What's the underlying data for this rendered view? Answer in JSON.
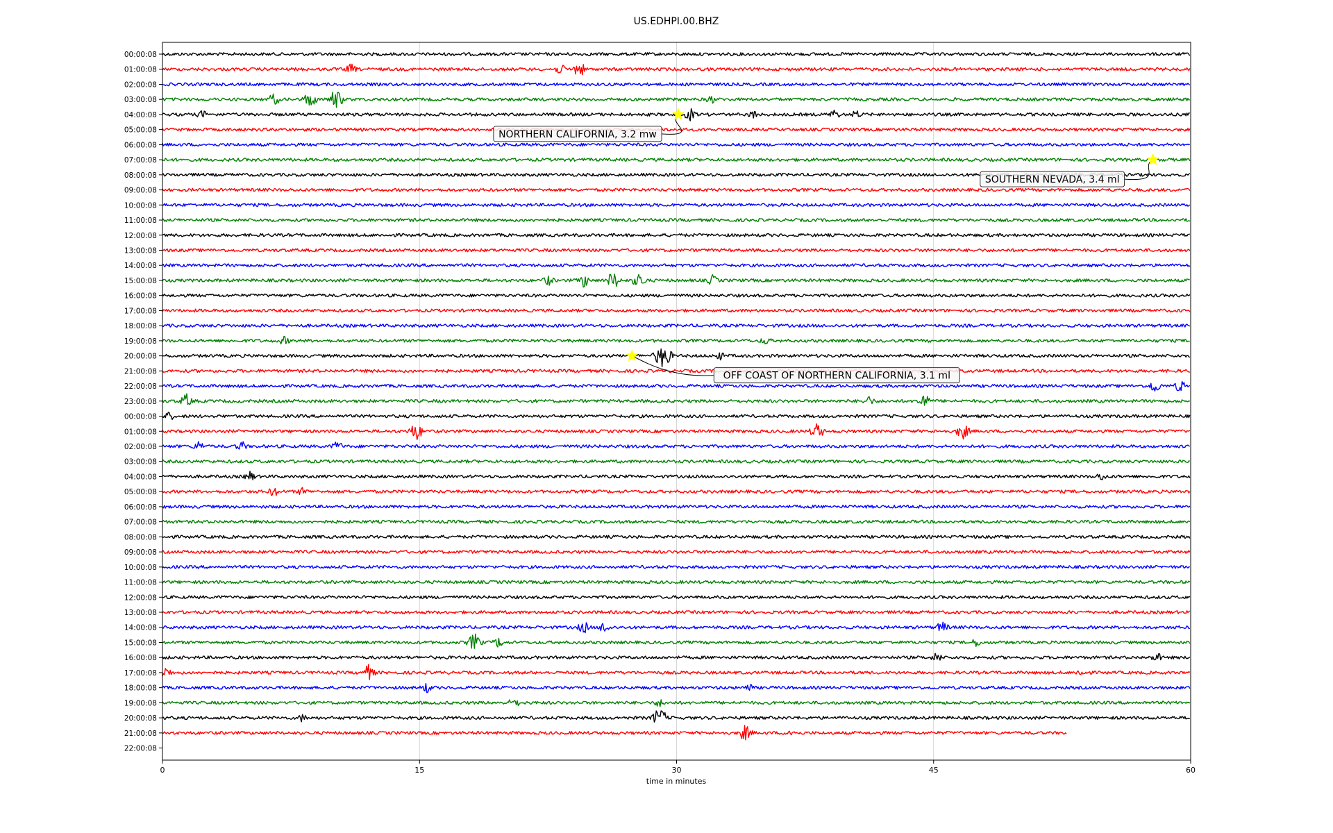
{
  "chart_data": {
    "type": "line",
    "title": "US.EDHPI.00.BHZ",
    "xlabel": "time in minutes",
    "ylabel": "",
    "xlim": [
      0,
      60
    ],
    "xticks": [
      0,
      15,
      30,
      45,
      60
    ],
    "grid": "vertical lines at 15, 30, 45",
    "trace_colors": [
      "#000000",
      "#ff0000",
      "#0000ff",
      "#008000"
    ],
    "row_labels": [
      "00:00:08",
      "01:00:08",
      "02:00:08",
      "03:00:08",
      "04:00:08",
      "05:00:08",
      "06:00:08",
      "07:00:08",
      "08:00:08",
      "09:00:08",
      "10:00:08",
      "11:00:08",
      "12:00:08",
      "13:00:08",
      "14:00:08",
      "15:00:08",
      "16:00:08",
      "17:00:08",
      "18:00:08",
      "19:00:08",
      "20:00:08",
      "21:00:08",
      "22:00:08",
      "23:00:08",
      "00:00:08",
      "01:00:08",
      "02:00:08",
      "03:00:08",
      "04:00:08",
      "05:00:08",
      "06:00:08",
      "07:00:08",
      "08:00:08",
      "09:00:08",
      "10:00:08",
      "11:00:08",
      "12:00:08",
      "13:00:08",
      "14:00:08",
      "15:00:08",
      "16:00:08",
      "17:00:08",
      "18:00:08",
      "19:00:08",
      "20:00:08",
      "21:00:08",
      "22:00:08"
    ],
    "last_trace_end_minute": 52.8,
    "events": [
      {
        "label": "NORTHERN CALIFORNIA, 3.2 mw",
        "row": 4,
        "minute": 30.1
      },
      {
        "label": "SOUTHERN NEVADA, 3.4 ml",
        "row": 7,
        "minute": 57.8
      },
      {
        "label": "OFF COAST OF NORTHERN CALIFORNIA, 3.1 ml",
        "row": 20,
        "minute": 27.4
      }
    ],
    "bursts": [
      {
        "row": 1,
        "minute": 11.0,
        "amp": 0.5
      },
      {
        "row": 1,
        "minute": 23.2,
        "amp": 0.5
      },
      {
        "row": 1,
        "minute": 24.3,
        "amp": 0.8
      },
      {
        "row": 3,
        "minute": 6.5,
        "amp": 0.6
      },
      {
        "row": 3,
        "minute": 8.6,
        "amp": 0.8
      },
      {
        "row": 3,
        "minute": 10.1,
        "amp": 1.0
      },
      {
        "row": 3,
        "minute": 32.0,
        "amp": 0.4
      },
      {
        "row": 4,
        "minute": 2.3,
        "amp": 0.4
      },
      {
        "row": 4,
        "minute": 30.8,
        "amp": 0.6
      },
      {
        "row": 4,
        "minute": 34.5,
        "amp": 0.4
      },
      {
        "row": 4,
        "minute": 39.2,
        "amp": 0.5
      },
      {
        "row": 4,
        "minute": 40.5,
        "amp": 0.4
      },
      {
        "row": 15,
        "minute": 22.5,
        "amp": 0.5
      },
      {
        "row": 15,
        "minute": 24.6,
        "amp": 0.7
      },
      {
        "row": 15,
        "minute": 26.3,
        "amp": 0.9
      },
      {
        "row": 15,
        "minute": 27.8,
        "amp": 0.8
      },
      {
        "row": 15,
        "minute": 32.1,
        "amp": 0.5
      },
      {
        "row": 19,
        "minute": 7.1,
        "amp": 0.4
      },
      {
        "row": 19,
        "minute": 35.2,
        "amp": 0.4
      },
      {
        "row": 20,
        "minute": 29.2,
        "amp": 1.3
      },
      {
        "row": 20,
        "minute": 32.5,
        "amp": 0.4
      },
      {
        "row": 22,
        "minute": 57.9,
        "amp": 0.7
      },
      {
        "row": 22,
        "minute": 59.4,
        "amp": 0.6
      },
      {
        "row": 23,
        "minute": 1.4,
        "amp": 0.7
      },
      {
        "row": 23,
        "minute": 41.2,
        "amp": 0.5
      },
      {
        "row": 23,
        "minute": 44.4,
        "amp": 0.8
      },
      {
        "row": 24,
        "minute": 0.4,
        "amp": 0.4
      },
      {
        "row": 25,
        "minute": 14.8,
        "amp": 0.9
      },
      {
        "row": 25,
        "minute": 38.2,
        "amp": 0.8
      },
      {
        "row": 25,
        "minute": 46.7,
        "amp": 0.8
      },
      {
        "row": 26,
        "minute": 2.1,
        "amp": 0.5
      },
      {
        "row": 26,
        "minute": 4.6,
        "amp": 0.5
      },
      {
        "row": 26,
        "minute": 10.2,
        "amp": 0.5
      },
      {
        "row": 28,
        "minute": 5.1,
        "amp": 0.5
      },
      {
        "row": 28,
        "minute": 54.8,
        "amp": 0.4
      },
      {
        "row": 29,
        "minute": 6.5,
        "amp": 0.5
      },
      {
        "row": 29,
        "minute": 8.2,
        "amp": 0.4
      },
      {
        "row": 38,
        "minute": 24.6,
        "amp": 0.6
      },
      {
        "row": 38,
        "minute": 25.8,
        "amp": 0.6
      },
      {
        "row": 38,
        "minute": 45.5,
        "amp": 0.6
      },
      {
        "row": 39,
        "minute": 18.2,
        "amp": 0.9
      },
      {
        "row": 39,
        "minute": 19.6,
        "amp": 0.5
      },
      {
        "row": 39,
        "minute": 47.5,
        "amp": 0.4
      },
      {
        "row": 40,
        "minute": 45.2,
        "amp": 0.5
      },
      {
        "row": 40,
        "minute": 58.0,
        "amp": 0.5
      },
      {
        "row": 41,
        "minute": 0.2,
        "amp": 0.6
      },
      {
        "row": 41,
        "minute": 12.0,
        "amp": 0.8
      },
      {
        "row": 41,
        "minute": 53.6,
        "amp": 0.4
      },
      {
        "row": 42,
        "minute": 15.4,
        "amp": 0.5
      },
      {
        "row": 42,
        "minute": 34.2,
        "amp": 0.4
      },
      {
        "row": 43,
        "minute": 20.5,
        "amp": 0.5
      },
      {
        "row": 43,
        "minute": 29.0,
        "amp": 0.4
      },
      {
        "row": 44,
        "minute": 29.0,
        "amp": 1.0
      },
      {
        "row": 44,
        "minute": 8.2,
        "amp": 0.4
      },
      {
        "row": 45,
        "minute": 34.0,
        "amp": 0.8
      },
      {
        "row": 45,
        "minute": 36.6,
        "amp": 0.4
      }
    ]
  }
}
